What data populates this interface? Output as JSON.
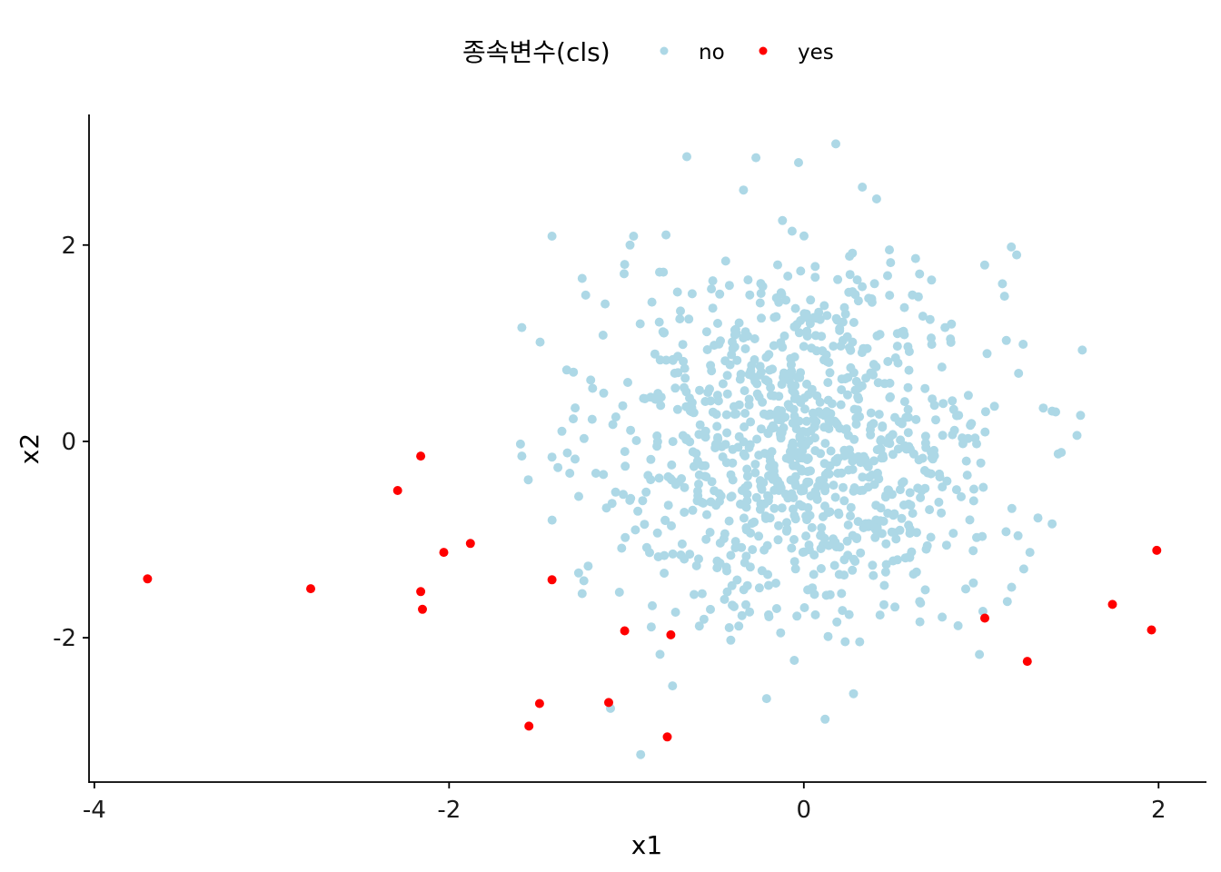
{
  "chart_data": {
    "type": "scatter",
    "xlabel": "x1",
    "ylabel": "x2",
    "xlim": [
      -4.03,
      2.27
    ],
    "ylim": [
      -3.47,
      3.33
    ],
    "x_ticks": [
      -4,
      -2,
      0,
      2
    ],
    "y_ticks": [
      -2,
      0,
      2
    ],
    "x_tick_labels": [
      "-4",
      "-2",
      "0",
      "2"
    ],
    "y_tick_labels": [
      "-2",
      "0",
      "2"
    ],
    "grid": false,
    "legend": {
      "position": "top",
      "title": "종속변수(cls)",
      "entries": [
        {
          "label": "no",
          "color": "#ADD8E6"
        },
        {
          "label": "yes",
          "color": "#FF0000"
        }
      ]
    },
    "series": [
      {
        "name": "yes",
        "color": "#FF0000",
        "points": [
          [
            -3.7,
            -1.4
          ],
          [
            -2.78,
            -1.5
          ],
          [
            -2.29,
            -0.5
          ],
          [
            -2.16,
            -0.15
          ],
          [
            -2.16,
            -1.53
          ],
          [
            -2.15,
            -1.71
          ],
          [
            -2.03,
            -1.13
          ],
          [
            -1.88,
            -1.04
          ],
          [
            -1.42,
            -1.41
          ],
          [
            -1.49,
            -2.67
          ],
          [
            -1.55,
            -2.9
          ],
          [
            -1.1,
            -2.66
          ],
          [
            -1.01,
            -1.93
          ],
          [
            -0.75,
            -1.97
          ],
          [
            -0.77,
            -3.01
          ],
          [
            1.02,
            -1.8
          ],
          [
            1.26,
            -2.24
          ],
          [
            1.74,
            -1.66
          ],
          [
            1.96,
            -1.92
          ],
          [
            1.99,
            -1.11
          ]
        ]
      },
      {
        "name": "no",
        "color": "#ADD8E6",
        "generated": {
          "count": 960,
          "distribution": "standard-normal-2d",
          "center": [
            0,
            0
          ],
          "sd": [
            0.55,
            0.95
          ]
        },
        "points": [
          [
            -1.59,
            1.16
          ],
          [
            -1.42,
            2.09
          ],
          [
            -1.25,
            1.66
          ],
          [
            -1.23,
            1.49
          ],
          [
            -1.12,
            1.4
          ],
          [
            -0.98,
            2.0
          ],
          [
            -0.96,
            2.09
          ],
          [
            -0.66,
            2.9
          ],
          [
            -0.34,
            2.56
          ],
          [
            -0.27,
            2.89
          ],
          [
            -0.03,
            2.84
          ],
          [
            0.18,
            3.03
          ],
          [
            0.33,
            2.59
          ],
          [
            0.41,
            2.47
          ],
          [
            1.17,
            1.98
          ],
          [
            1.2,
            1.9
          ],
          [
            1.57,
            0.93
          ],
          [
            1.35,
            0.34
          ],
          [
            1.42,
            0.3
          ],
          [
            1.54,
            0.06
          ],
          [
            1.4,
            -0.84
          ],
          [
            1.32,
            -0.78
          ],
          [
            -1.42,
            -0.16
          ],
          [
            -1.59,
            -0.15
          ],
          [
            -1.29,
            -0.18
          ],
          [
            -1.3,
            0.23
          ],
          [
            -1.24,
            -1.42
          ],
          [
            -1.27,
            -1.34
          ],
          [
            -1.25,
            -1.55
          ],
          [
            -1.09,
            -2.72
          ],
          [
            -0.92,
            -3.19
          ],
          [
            -0.74,
            -2.49
          ],
          [
            0.12,
            -2.83
          ],
          [
            0.28,
            -2.57
          ],
          [
            -0.21,
            -2.62
          ],
          [
            -0.86,
            -1.89
          ],
          [
            1.24,
            -1.3
          ],
          [
            1.14,
            -0.92
          ],
          [
            0.99,
            -2.17
          ],
          [
            0.78,
            -1.79
          ]
        ]
      }
    ]
  }
}
